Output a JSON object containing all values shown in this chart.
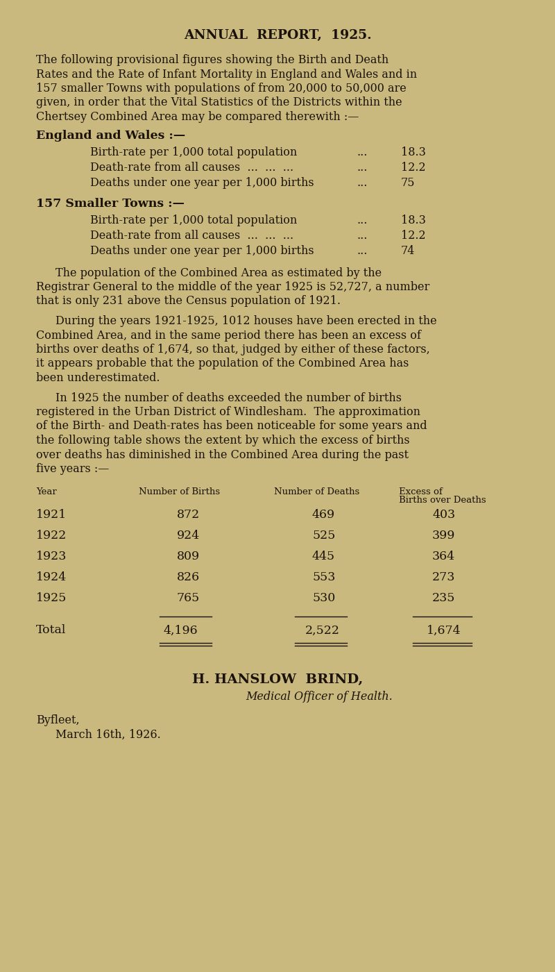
{
  "bg_color": "#c9b97e",
  "text_color": "#1a1208",
  "title": "ANNUAL  REPORT,  1925.",
  "para1_lines": [
    "The following provisional figures showing the Birth and Death",
    "Rates and the Rate of Infant Mortality in England and Wales and in",
    "157 smaller Towns with populations of from 20,000 to 50,000 are",
    "given, in order that the Vital Statistics of the Districts within the",
    "Chertsey Combined Area may be compared therewith :—"
  ],
  "section1_header": "England and Wales :—",
  "section1_items": [
    [
      "Birth-rate per 1,000 total population",
      "...",
      "18.3"
    ],
    [
      "Death-rate from all causes  ...  ...  ...",
      "...",
      "12.2"
    ],
    [
      "Deaths under one year per 1,000 births",
      "...",
      "75"
    ]
  ],
  "section2_header": "157 Smaller Towns :—",
  "section2_items": [
    [
      "Birth-rate per 1,000 total population",
      "...",
      "18.3"
    ],
    [
      "Death-rate from all causes  ...  ...  ...",
      "...",
      "12.2"
    ],
    [
      "Deaths under one year per 1,000 births",
      "...",
      "74"
    ]
  ],
  "para2_lines": [
    "The population of the Combined Area as estimated by the",
    "Registrar General to the middle of the year 1925 is 52,727, a number",
    "that is only 231 above the Census population of 1921."
  ],
  "para3_lines": [
    "During the years 1921-1925, 1012 houses have been erected in the",
    "Combined Area, and in the same period there has been an excess of",
    "births over deaths of 1,674, so that, judged by either of these factors,",
    "it appears probable that the population of the Combined Area has",
    "been underestimated."
  ],
  "para4_lines": [
    "In 1925 the number of deaths exceeded the number of births",
    "registered in the Urban District of Windlesham.  The approximation",
    "of the Birth- and Death-rates has been noticeable for some years and",
    "the following table shows the extent by which the excess of births",
    "over deaths has diminished in the Combined Area during the past",
    "five years :—"
  ],
  "table_col_header_year": "Year",
  "table_col_header_births": "Number of Births",
  "table_col_header_deaths": "Number of Deaths",
  "table_col_header_excess1": "Excess of",
  "table_col_header_excess2": "Births over Deaths",
  "table_rows": [
    [
      "1921",
      "872",
      "469",
      "403"
    ],
    [
      "1922",
      "924",
      "525",
      "399"
    ],
    [
      "1923",
      "809",
      "445",
      "364"
    ],
    [
      "1924",
      "826",
      "553",
      "273"
    ],
    [
      "1925",
      "765",
      "530",
      "235"
    ]
  ],
  "table_total": [
    "Total",
    "4,196",
    "2,522",
    "1,674"
  ],
  "signature_name": "H. HANSLOW  BRIND,",
  "signature_title": "Medical Officer of Health.",
  "footer_location": "Byfleet,",
  "footer_date": "March 16th, 1926."
}
